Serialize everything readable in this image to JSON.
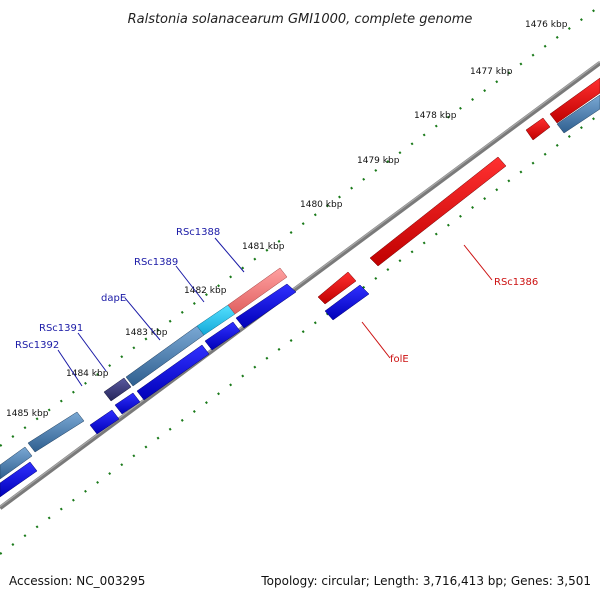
{
  "title": "Ralstonia solanacearum GMI1000, complete genome",
  "footer": {
    "accession": "Accession: NC_003295",
    "summary": "Topology: circular; Length: 3,716,413 bp; Genes: 3,501"
  },
  "tick_labels": [
    "1476 kbp",
    "1477 kbp",
    "1478 kbp",
    "1479 kbp",
    "1480 kbp",
    "1481 kbp",
    "1482 kbp",
    "1483 kbp",
    "1484 kbp",
    "1485 kbp"
  ],
  "gene_labels": [
    {
      "id": "RSc1388",
      "color": "#1a1aa6"
    },
    {
      "id": "RSc1389",
      "color": "#1a1aa6"
    },
    {
      "id": "dapE",
      "color": "#1a1aa6"
    },
    {
      "id": "RSc1391",
      "color": "#1a1aa6"
    },
    {
      "id": "RSc1392",
      "color": "#1a1aa6"
    },
    {
      "id": "RSc1386",
      "color": "#cc1111"
    },
    {
      "id": "folE",
      "color": "#cc1111"
    }
  ],
  "colors": {
    "forward_cds": "#0000ee",
    "reverse_cds": "#ee0000",
    "backbone": "#777777",
    "ticks": "#1a7a1a",
    "steel": "#4a7fb0",
    "cyan": "#22c4ee",
    "pink": "#ee7a7a",
    "purple": "#3a3a7a"
  }
}
